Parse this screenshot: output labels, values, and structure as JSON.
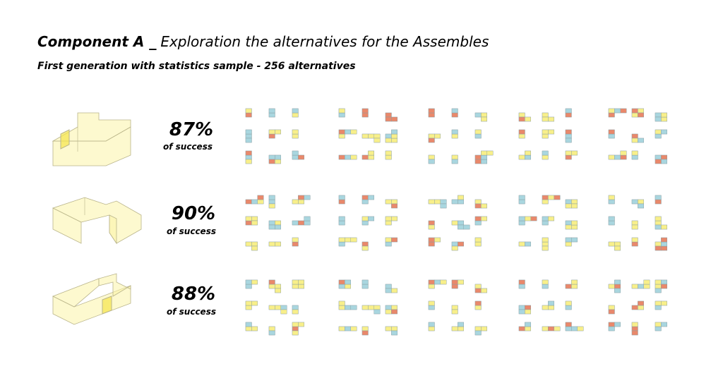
{
  "header": {
    "title_bold": "Component A _",
    "title_light": "Exploration the alternatives for the Assembles",
    "subtitle": "First generation with statistics sample - 256 alternatives"
  },
  "rows": [
    {
      "percent": "87%",
      "caption": "of success"
    },
    {
      "percent": "90%",
      "caption": "of success"
    },
    {
      "percent": "88%",
      "caption": "of success"
    }
  ]
}
